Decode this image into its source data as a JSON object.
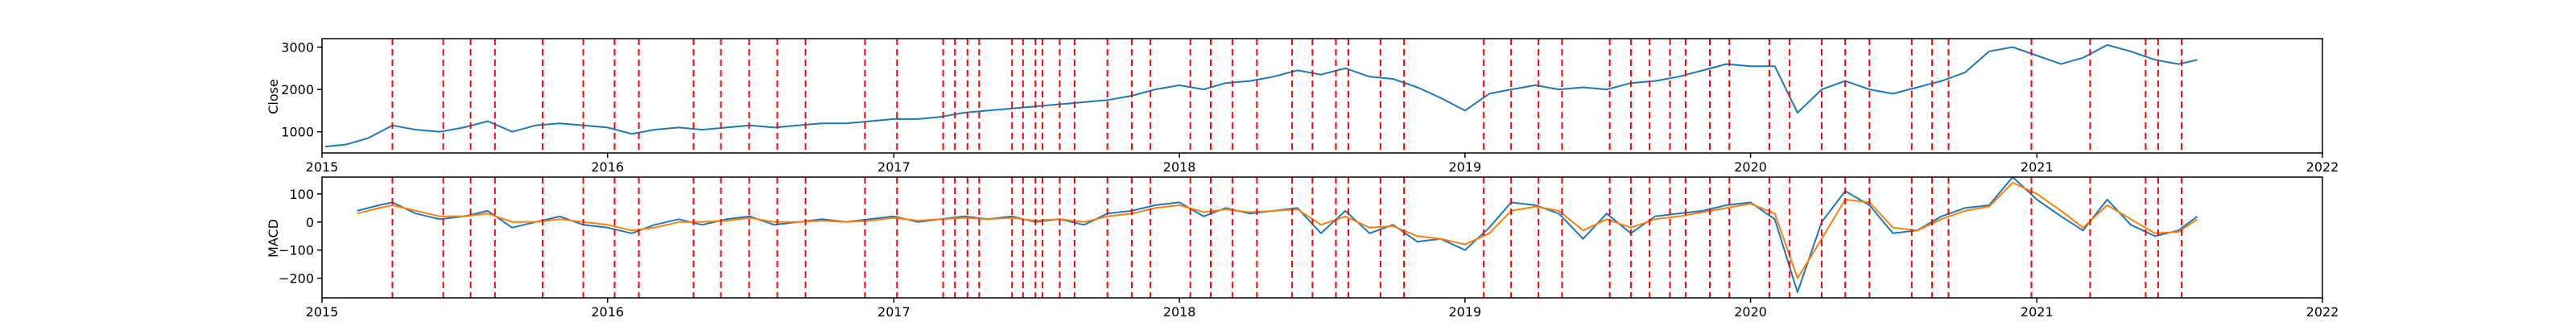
{
  "colors": {
    "close": "#1f77b4",
    "macd": "#1f77b4",
    "signal": "#ff7f0e",
    "event": "#ff0000",
    "axes": "#000000"
  },
  "chart_data": [
    {
      "type": "line",
      "ylabel": "Close",
      "xlabel": "",
      "title": "",
      "grid": false,
      "xlim": [
        "2015-01-01",
        "2022-01-01"
      ],
      "ylim": [
        500,
        3200
      ],
      "x_ticks": [
        "2015",
        "2016",
        "2017",
        "2018",
        "2019",
        "2020",
        "2021",
        "2022"
      ],
      "y_ticks": [
        1000,
        2000,
        3000
      ],
      "y_tick_labels": [
        "1000",
        "2000",
        "3000"
      ],
      "series": [
        {
          "key": "close",
          "x": [
            "2015-01-05",
            "2015-02-01",
            "2015-03-01",
            "2015-04-01",
            "2015-05-01",
            "2015-06-01",
            "2015-07-01",
            "2015-08-01",
            "2015-09-01",
            "2015-10-01",
            "2015-11-01",
            "2015-12-01",
            "2016-01-01",
            "2016-02-01",
            "2016-03-01",
            "2016-04-01",
            "2016-05-01",
            "2016-06-01",
            "2016-07-01",
            "2016-08-01",
            "2016-09-01",
            "2016-10-01",
            "2016-11-01",
            "2016-12-01",
            "2017-01-01",
            "2017-02-01",
            "2017-03-01",
            "2017-04-01",
            "2017-05-01",
            "2017-06-01",
            "2017-07-01",
            "2017-08-01",
            "2017-09-01",
            "2017-10-01",
            "2017-11-01",
            "2017-12-01",
            "2018-01-01",
            "2018-02-01",
            "2018-03-01",
            "2018-04-01",
            "2018-05-01",
            "2018-06-01",
            "2018-07-01",
            "2018-08-01",
            "2018-09-01",
            "2018-10-01",
            "2018-11-01",
            "2018-12-01",
            "2019-01-01",
            "2019-02-01",
            "2019-03-01",
            "2019-04-01",
            "2019-05-01",
            "2019-06-01",
            "2019-07-01",
            "2019-08-01",
            "2019-09-01",
            "2019-10-01",
            "2019-11-01",
            "2019-12-01",
            "2020-01-01",
            "2020-02-01",
            "2020-03-01",
            "2020-04-01",
            "2020-05-01",
            "2020-06-01",
            "2020-07-01",
            "2020-08-01",
            "2020-09-01",
            "2020-10-01",
            "2020-11-01",
            "2020-12-01",
            "2021-01-01",
            "2021-02-01",
            "2021-03-01",
            "2021-04-01",
            "2021-05-01",
            "2021-06-01",
            "2021-07-01",
            "2021-07-25"
          ],
          "y": [
            650,
            700,
            850,
            1150,
            1050,
            1000,
            1100,
            1250,
            1000,
            1150,
            1200,
            1150,
            1100,
            950,
            1050,
            1100,
            1050,
            1100,
            1150,
            1100,
            1150,
            1200,
            1200,
            1250,
            1300,
            1300,
            1350,
            1450,
            1500,
            1550,
            1600,
            1650,
            1700,
            1750,
            1850,
            2000,
            2100,
            2000,
            2150,
            2200,
            2300,
            2450,
            2350,
            2500,
            2300,
            2250,
            2050,
            1800,
            1500,
            1900,
            2000,
            2100,
            2000,
            2050,
            2000,
            2150,
            2200,
            2300,
            2450,
            2600,
            2550,
            2550,
            1450,
            2000,
            2200,
            2000,
            1900,
            2050,
            2200,
            2400,
            2900,
            3000,
            2800,
            2600,
            2750,
            3050,
            2900,
            2700,
            2600,
            2700
          ]
        }
      ],
      "event_lines": [
        "2015-04-01",
        "2015-06-05",
        "2015-07-10",
        "2015-08-10",
        "2015-10-10",
        "2015-12-01",
        "2016-01-10",
        "2016-02-10",
        "2016-04-20",
        "2016-05-25",
        "2016-06-30",
        "2016-08-05",
        "2016-09-10",
        "2016-11-25",
        "2017-01-05",
        "2017-03-05",
        "2017-03-20",
        "2017-04-05",
        "2017-04-20",
        "2017-06-01",
        "2017-06-15",
        "2017-07-01",
        "2017-07-10",
        "2017-08-01",
        "2017-08-20",
        "2017-10-01",
        "2017-11-01",
        "2017-11-25",
        "2018-01-15",
        "2018-02-10",
        "2018-03-10",
        "2018-04-10",
        "2018-05-25",
        "2018-06-20",
        "2018-07-20",
        "2018-08-05",
        "2018-09-15",
        "2018-10-15",
        "2019-01-25",
        "2019-03-01",
        "2019-04-05",
        "2019-05-05",
        "2019-07-05",
        "2019-08-01",
        "2019-08-25",
        "2019-09-20",
        "2019-10-10",
        "2019-11-10",
        "2019-12-05",
        "2020-01-25",
        "2020-02-20",
        "2020-04-01",
        "2020-05-01",
        "2020-06-01",
        "2020-07-25",
        "2020-08-20",
        "2020-09-10",
        "2020-12-25",
        "2021-03-10",
        "2021-05-20",
        "2021-06-05",
        "2021-07-05"
      ]
    },
    {
      "type": "line",
      "ylabel": "MACD",
      "xlabel": "",
      "title": "",
      "grid": false,
      "xlim": [
        "2015-01-01",
        "2022-01-01"
      ],
      "ylim": [
        -270,
        160
      ],
      "x_ticks": [
        "2015",
        "2016",
        "2017",
        "2018",
        "2019",
        "2020",
        "2021",
        "2022"
      ],
      "y_ticks": [
        -200,
        -100,
        0,
        100
      ],
      "y_tick_labels": [
        "−200",
        "−100",
        "0",
        "100"
      ],
      "series": [
        {
          "key": "macd",
          "x": [
            "2015-02-15",
            "2015-03-15",
            "2015-04-01",
            "2015-05-01",
            "2015-06-01",
            "2015-07-01",
            "2015-08-01",
            "2015-09-01",
            "2015-10-01",
            "2015-11-01",
            "2015-12-01",
            "2016-01-01",
            "2016-02-01",
            "2016-03-01",
            "2016-04-01",
            "2016-05-01",
            "2016-06-01",
            "2016-07-01",
            "2016-08-01",
            "2016-09-01",
            "2016-10-01",
            "2016-11-01",
            "2016-12-01",
            "2017-01-01",
            "2017-02-01",
            "2017-03-01",
            "2017-04-01",
            "2017-05-01",
            "2017-06-01",
            "2017-07-01",
            "2017-08-01",
            "2017-09-01",
            "2017-10-01",
            "2017-11-01",
            "2017-12-01",
            "2018-01-01",
            "2018-02-01",
            "2018-03-01",
            "2018-04-01",
            "2018-05-01",
            "2018-06-01",
            "2018-07-01",
            "2018-08-01",
            "2018-09-01",
            "2018-10-01",
            "2018-11-01",
            "2018-12-01",
            "2019-01-01",
            "2019-02-01",
            "2019-03-01",
            "2019-04-01",
            "2019-05-01",
            "2019-06-01",
            "2019-07-01",
            "2019-08-01",
            "2019-09-01",
            "2019-10-01",
            "2019-11-01",
            "2019-12-01",
            "2020-01-01",
            "2020-02-01",
            "2020-03-01",
            "2020-04-01",
            "2020-05-01",
            "2020-06-01",
            "2020-07-01",
            "2020-08-01",
            "2020-09-01",
            "2020-10-01",
            "2020-11-01",
            "2020-12-01",
            "2021-01-01",
            "2021-02-01",
            "2021-03-01",
            "2021-04-01",
            "2021-05-01",
            "2021-06-01",
            "2021-07-01",
            "2021-07-25"
          ],
          "y": [
            40,
            60,
            70,
            30,
            10,
            20,
            40,
            -20,
            0,
            20,
            -10,
            -20,
            -40,
            -10,
            10,
            -10,
            10,
            20,
            -10,
            0,
            10,
            0,
            10,
            20,
            0,
            10,
            20,
            10,
            20,
            0,
            10,
            -10,
            30,
            40,
            60,
            70,
            20,
            50,
            30,
            40,
            50,
            -40,
            40,
            -40,
            -10,
            -70,
            -60,
            -100,
            -20,
            70,
            60,
            30,
            -60,
            30,
            -40,
            20,
            30,
            40,
            60,
            70,
            10,
            -250,
            0,
            110,
            60,
            -40,
            -30,
            20,
            50,
            60,
            160,
            80,
            20,
            -30,
            80,
            -10,
            -50,
            -30,
            20
          ]
        },
        {
          "key": "signal",
          "x": [
            "2015-02-15",
            "2015-03-15",
            "2015-04-01",
            "2015-05-01",
            "2015-06-01",
            "2015-07-01",
            "2015-08-01",
            "2015-09-01",
            "2015-10-01",
            "2015-11-01",
            "2015-12-01",
            "2016-01-01",
            "2016-02-01",
            "2016-03-01",
            "2016-04-01",
            "2016-05-01",
            "2016-06-01",
            "2016-07-01",
            "2016-08-01",
            "2016-09-01",
            "2016-10-01",
            "2016-11-01",
            "2016-12-01",
            "2017-01-01",
            "2017-02-01",
            "2017-03-01",
            "2017-04-01",
            "2017-05-01",
            "2017-06-01",
            "2017-07-01",
            "2017-08-01",
            "2017-09-01",
            "2017-10-01",
            "2017-11-01",
            "2017-12-01",
            "2018-01-01",
            "2018-02-01",
            "2018-03-01",
            "2018-04-01",
            "2018-05-01",
            "2018-06-01",
            "2018-07-01",
            "2018-08-01",
            "2018-09-01",
            "2018-10-01",
            "2018-11-01",
            "2018-12-01",
            "2019-01-01",
            "2019-02-01",
            "2019-03-01",
            "2019-04-01",
            "2019-05-01",
            "2019-06-01",
            "2019-07-01",
            "2019-08-01",
            "2019-09-01",
            "2019-10-01",
            "2019-11-01",
            "2019-12-01",
            "2020-01-01",
            "2020-02-01",
            "2020-03-01",
            "2020-04-01",
            "2020-05-01",
            "2020-06-01",
            "2020-07-01",
            "2020-08-01",
            "2020-09-01",
            "2020-10-01",
            "2020-11-01",
            "2020-12-01",
            "2021-01-01",
            "2021-02-01",
            "2021-03-01",
            "2021-04-01",
            "2021-05-01",
            "2021-06-01",
            "2021-07-01",
            "2021-07-25"
          ],
          "y": [
            30,
            50,
            60,
            40,
            20,
            20,
            30,
            0,
            0,
            10,
            0,
            -10,
            -30,
            -20,
            0,
            0,
            5,
            15,
            0,
            0,
            5,
            0,
            5,
            15,
            5,
            10,
            15,
            10,
            15,
            5,
            10,
            0,
            20,
            30,
            50,
            60,
            35,
            45,
            35,
            40,
            45,
            -10,
            20,
            -20,
            -15,
            -50,
            -60,
            -80,
            -40,
            40,
            55,
            40,
            -30,
            10,
            -20,
            10,
            20,
            35,
            50,
            65,
            30,
            -200,
            -60,
            80,
            70,
            -20,
            -30,
            10,
            40,
            55,
            140,
            100,
            40,
            -20,
            60,
            10,
            -40,
            -35,
            10
          ]
        }
      ],
      "event_lines": [
        "2015-04-01",
        "2015-06-05",
        "2015-07-10",
        "2015-08-10",
        "2015-10-10",
        "2015-12-01",
        "2016-01-10",
        "2016-02-10",
        "2016-04-20",
        "2016-05-25",
        "2016-06-30",
        "2016-08-05",
        "2016-09-10",
        "2016-11-25",
        "2017-01-05",
        "2017-03-05",
        "2017-03-20",
        "2017-04-05",
        "2017-04-20",
        "2017-06-01",
        "2017-06-15",
        "2017-07-01",
        "2017-07-10",
        "2017-08-01",
        "2017-08-20",
        "2017-10-01",
        "2017-11-01",
        "2017-11-25",
        "2018-01-15",
        "2018-02-10",
        "2018-03-10",
        "2018-04-10",
        "2018-05-25",
        "2018-06-20",
        "2018-07-20",
        "2018-08-05",
        "2018-09-15",
        "2018-10-15",
        "2019-01-25",
        "2019-03-01",
        "2019-04-05",
        "2019-05-05",
        "2019-07-05",
        "2019-08-01",
        "2019-08-25",
        "2019-09-20",
        "2019-10-10",
        "2019-11-10",
        "2019-12-05",
        "2020-01-25",
        "2020-02-20",
        "2020-04-01",
        "2020-05-01",
        "2020-06-01",
        "2020-07-25",
        "2020-08-20",
        "2020-09-10",
        "2020-12-25",
        "2021-03-10",
        "2021-05-20",
        "2021-06-05",
        "2021-07-05"
      ]
    }
  ]
}
